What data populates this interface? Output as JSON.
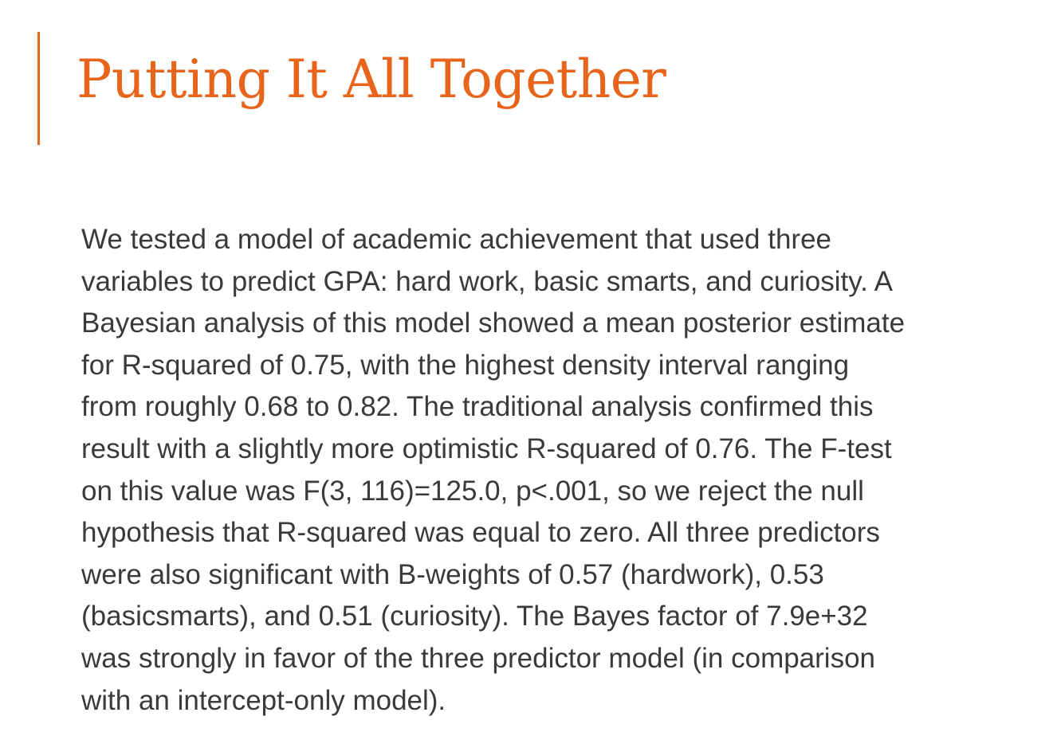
{
  "slide": {
    "title": "Putting It All Together",
    "accent_color": "#e8641b",
    "text_color": "#3a3a3a",
    "body_lines": [
      "We tested a model of academic achievement that used three",
      "variables to predict GPA: hard work, basic smarts, and curiosity. A",
      "Bayesian analysis of this model showed a mean posterior estimate",
      "for R-squared of 0.75, with the highest density interval ranging",
      "from roughly 0.68 to 0.82. The traditional analysis confirmed this",
      "result with a slightly more optimistic R-squared of 0.76. The F-test",
      "on this value was F(3, 116)=125.0, p<.001, so we reject the null",
      "hypothesis that R-squared was equal to zero. All three predictors",
      "were also significant with B-weights of 0.57 (hardwork), 0.53",
      "(basicsmarts), and 0.51 (curiosity). The Bayes factor of 7.9e+32",
      "was strongly in favor of the three predictor model (in comparison",
      "with an intercept-only model)."
    ]
  }
}
